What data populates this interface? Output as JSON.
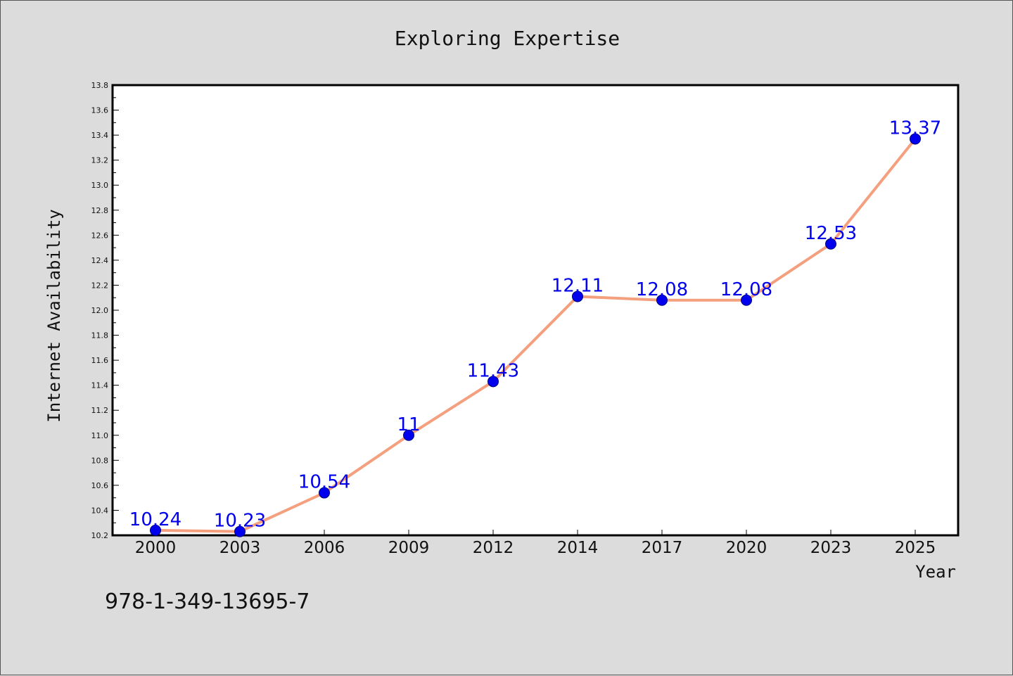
{
  "chart_data": {
    "type": "line",
    "title": "Exploring Expertise",
    "xlabel": "Year",
    "ylabel": "Internet Availability",
    "categories": [
      "2000",
      "2003",
      "2006",
      "2009",
      "2012",
      "2014",
      "2017",
      "2020",
      "2023",
      "2025"
    ],
    "series": [
      {
        "values": [
          10.24,
          10.23,
          10.54,
          11,
          11.43,
          12.11,
          12.08,
          12.08,
          12.53,
          13.37
        ],
        "data_labels": [
          "10.24",
          "10.23",
          "10.54",
          "11",
          "11.43",
          "12.11",
          "12.08",
          "12.08",
          "12.53",
          "13.37"
        ],
        "line_color": "#f4a07e",
        "marker_color": "#0000ee",
        "label_color": "#0000ee"
      }
    ],
    "ylim": [
      10.2,
      13.8
    ],
    "yticks": [
      "10.2",
      "10.4",
      "10.6",
      "10.8",
      "11.0",
      "11.2",
      "11.4",
      "11.6",
      "11.8",
      "12.0",
      "12.2",
      "12.4",
      "12.6",
      "12.8",
      "13.0",
      "13.2",
      "13.4",
      "13.6",
      "13.8"
    ],
    "grid": false,
    "legend": "none"
  },
  "footer": {
    "isbn": "978-1-349-13695-7"
  }
}
